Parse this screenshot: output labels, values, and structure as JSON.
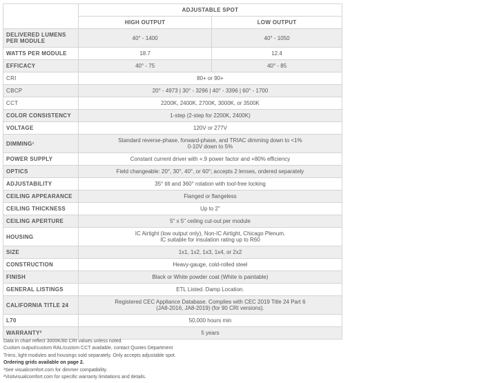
{
  "header": {
    "group": "ADJUSTABLE SPOT",
    "col1": "HIGH OUTPUT",
    "col2": "LOW OUTPUT"
  },
  "rows": [
    {
      "label": "DELIVERED LUMENS PER MODULE",
      "high": "40° - 1400",
      "low": "40° - 1050"
    },
    {
      "label": "WATTS PER MODULE",
      "high": "18.7",
      "low": "12.4"
    },
    {
      "label": "EFFICACY",
      "high": "40° - 75",
      "low": "40° - 85"
    },
    {
      "label": "CRI",
      "value": "80+ or 90+"
    },
    {
      "label": "CBCP",
      "value": "20° - 4973 | 30° - 3296 | 40° - 3396 | 60° - 1700"
    },
    {
      "label": "CCT",
      "value": "2200K, 2400K, 2700K, 3000K, or 3500K"
    },
    {
      "label": "COLOR CONSISTENCY",
      "value": "1-step (2-step for 2200K, 2400K)"
    },
    {
      "label": "VOLTAGE",
      "value": "120V or 277V"
    },
    {
      "label": "DIMMING¹",
      "value": "Standard reverse-phase, forward-phase, and TRIAC dimming down to <1%",
      "value2": "0-10V down to 5%"
    },
    {
      "label": "POWER SUPPLY",
      "value": "Constant current driver with +.9 power factor and +80% efficiency"
    },
    {
      "label": "OPTICS",
      "value": "Field changeable: 20°, 30°, 40°, or 60°; accepts 2 lenses, ordered separately"
    },
    {
      "label": "ADJUSTABILITY",
      "value": "35° tilt and 360° rotation with tool-free locking"
    },
    {
      "label": "CEILING APPEARANCE",
      "value": "Flanged or flangeless"
    },
    {
      "label": "CEILING THICKNESS",
      "value": "Up to 2\""
    },
    {
      "label": "CEILING APERTURE",
      "value": "5\" x 5\" ceiling cut-out per module"
    },
    {
      "label": "HOUSING",
      "value": "IC Airtight (low output only), Non-IC Airtight, Chicago Plenum.",
      "value2": "IC suitable for insulation rating up to R60"
    },
    {
      "label": "SIZE",
      "value": "1x1, 1x2, 1x3, 1x4, or 2x2"
    },
    {
      "label": "CONSTRUCTION",
      "value": "Heavy-gauge, cold-rolled steel"
    },
    {
      "label": "FINISH",
      "value": "Black or White powder coat (White is paintable)"
    },
    {
      "label": "GENERAL LISTINGS",
      "value": "ETL Listed. Damp Location."
    },
    {
      "label": "CALIFORNIA TITLE 24",
      "value": "Registered CEC Appliance Database. Complies with CEC 2019 Title 24 Part 6",
      "value2": "(JA8-2016, JA8-2019) (for 90 CRI versions)."
    },
    {
      "label": "L70",
      "value": "50,000 hours min"
    },
    {
      "label": "WARRANTY²",
      "value": "5 years"
    }
  ],
  "notes": [
    "Data in chart reflect 3000K/80 CRI values unless noted.",
    "Custom output/custom RAL/custom CCT available, contact Quotes Department",
    "Trims, light modules and housings sold separately. Only accepts adjustable spot.",
    "Ordering grids available on page 2.",
    "¹See visualcomfort.com for dimmer compatibility.",
    "²Visitvisualcomfort.com for specific warranty limitations and details."
  ]
}
